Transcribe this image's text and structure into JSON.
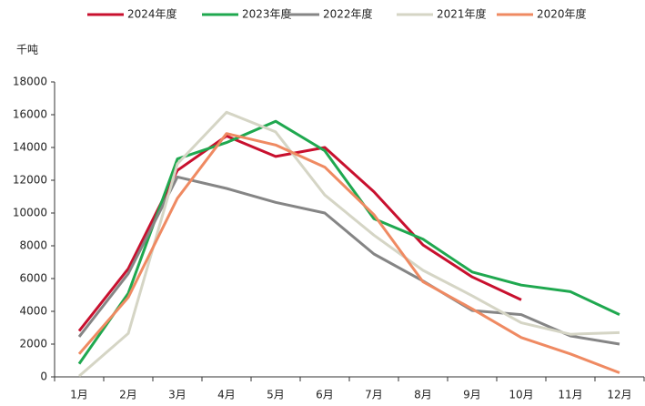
{
  "chart_data": {
    "type": "line",
    "y_label": "千吨",
    "categories": [
      "1月",
      "2月",
      "3月",
      "4月",
      "5月",
      "6月",
      "7月",
      "8月",
      "9月",
      "10月",
      "11月",
      "12月"
    ],
    "series": [
      {
        "name": "2024年度",
        "color": "#c8102e",
        "values": [
          2800,
          6600,
          12600,
          14700,
          13450,
          14000,
          11300,
          8050,
          6100,
          4700,
          null,
          null
        ]
      },
      {
        "name": "2023年度",
        "color": "#1fa84f",
        "values": [
          800,
          5100,
          13300,
          14300,
          15600,
          13800,
          9650,
          8400,
          6400,
          5600,
          5200,
          3800
        ]
      },
      {
        "name": "2022年度",
        "color": "#858585",
        "values": [
          2450,
          6300,
          12200,
          11500,
          10650,
          10000,
          7500,
          5850,
          4050,
          3800,
          2500,
          2000
        ]
      },
      {
        "name": "2021年度",
        "color": "#d5d5c5",
        "values": [
          50,
          2650,
          13000,
          16150,
          14950,
          11100,
          8650,
          6500,
          4950,
          3300,
          2600,
          2700
        ]
      },
      {
        "name": "2020年度",
        "color": "#ef8a62",
        "values": [
          1400,
          4850,
          10900,
          14850,
          14150,
          12800,
          9900,
          5800,
          4150,
          2400,
          1400,
          250
        ]
      }
    ],
    "ylim": [
      0,
      18000
    ],
    "yticks": [
      0,
      2000,
      4000,
      6000,
      8000,
      10000,
      12000,
      14000,
      16000,
      18000
    ],
    "grid": false,
    "legend": "top"
  }
}
